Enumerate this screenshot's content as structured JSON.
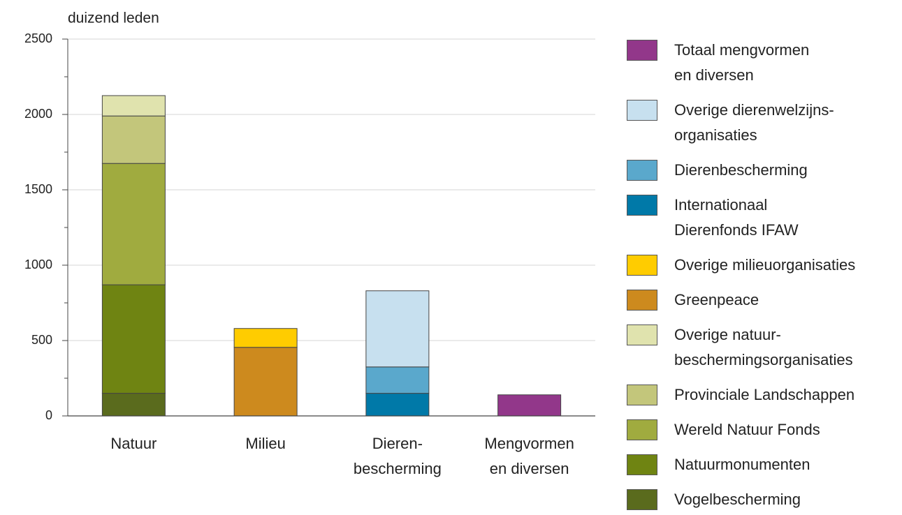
{
  "chart_data": {
    "type": "stacked_bar",
    "y_axis_label": "duizend leden",
    "categories": [
      "Natuur",
      "Milieu",
      "Dieren-\nbescherming",
      "Mengvormen\nen diversen"
    ],
    "ylim": [
      0,
      2500
    ],
    "yticks": [
      0,
      500,
      1000,
      1500,
      2000,
      2500
    ],
    "grid": true,
    "series": [
      {
        "name": "Vogelbescherming",
        "color": "#5a6b1d",
        "values": [
          150,
          null,
          null,
          null
        ]
      },
      {
        "name": "Natuurmonumenten",
        "color": "#6f8412",
        "values": [
          720,
          null,
          null,
          null
        ]
      },
      {
        "name": "Wereld Natuur Fonds",
        "color": "#a0ab3f",
        "values": [
          805,
          null,
          null,
          null
        ]
      },
      {
        "name": "Provinciale Landschappen",
        "color": "#c3c67b",
        "values": [
          315,
          null,
          null,
          null
        ]
      },
      {
        "name": "Overige natuur-\nbeschermingsorganisaties",
        "color": "#e0e3ae",
        "values": [
          135,
          null,
          null,
          null
        ]
      },
      {
        "name": "Greenpeace",
        "color": "#cd8a1e",
        "values": [
          null,
          455,
          null,
          null
        ]
      },
      {
        "name": "Overige milieuorganisaties",
        "color": "#ffcc00",
        "values": [
          null,
          125,
          null,
          null
        ]
      },
      {
        "name": "Internationaal\nDierenfonds IFAW",
        "color": "#0079a8",
        "values": [
          null,
          null,
          150,
          null
        ]
      },
      {
        "name": "Dierenbescherming",
        "color": "#5aa8cc",
        "values": [
          null,
          null,
          175,
          null
        ]
      },
      {
        "name": "Overige dierenwelzijns-\norganisaties",
        "color": "#c7e0ef",
        "values": [
          null,
          null,
          505,
          null
        ]
      },
      {
        "name": "Totaal mengvormen\nen diversen",
        "color": "#92378a",
        "values": [
          null,
          null,
          null,
          140
        ]
      }
    ]
  }
}
